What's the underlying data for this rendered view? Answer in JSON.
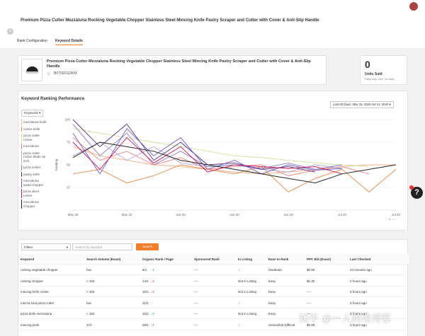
{
  "header": {
    "title": "Premium Pizza Cutter Mezzaluna Rocking Vegetable Chopper Stainless Steel Mincing Knife Pastry Scraper and Cutter with Cover & Anti-Slip Handle",
    "tabs": [
      "Rank Configuration",
      "Keyword Details"
    ]
  },
  "product": {
    "title": "Premium Pizza Cutter Mezzaluna Rocking Vegetable Chopper Stainless Steel Mincing Knife Pastry Scraper and Cutter with Cover & Anti-Slip Handle",
    "asin": "B0756FGDKM"
  },
  "units": {
    "value": "0",
    "label": "Units Sold",
    "note": "Daily avg. over 30 days"
  },
  "chart_data": {
    "type": "line",
    "title": "Keyword Ranking Performance",
    "date_range": "Last 60 Days: May 15, 2020-Jul 14, 2020",
    "dropdown": "Keywords",
    "y_label": "Ranking",
    "x": [
      0,
      5,
      10,
      15,
      20,
      25,
      30,
      35,
      40,
      45,
      50,
      55,
      60
    ],
    "xlim": [
      0,
      60
    ],
    "xticks": [
      {
        "value": 0,
        "label": "May 20"
      },
      {
        "value": 10,
        "label": "May 20"
      },
      {
        "value": 20,
        "label": "Jun 20"
      },
      {
        "value": 30,
        "label": "Jun 20"
      },
      {
        "value": 40,
        "label": "Jun 20"
      },
      {
        "value": 50,
        "label": "Jul 20"
      },
      {
        "value": 60,
        "label": "Jul 20"
      }
    ],
    "ylim": [
      0,
      100
    ],
    "yticks": [
      25,
      50,
      75,
      100
    ],
    "grid": true,
    "series": [
      {
        "name": "mezzaluna knife",
        "color": "#f4b183",
        "values": [
          70,
          60,
          55,
          50,
          48,
          45,
          42,
          40,
          42,
          45,
          48,
          50,
          50
        ]
      },
      {
        "name": "rocker knife",
        "color": "#e8894a",
        "values": [
          40,
          45,
          30,
          38,
          50,
          45,
          40,
          48,
          20,
          35,
          45,
          20,
          45
        ]
      },
      {
        "name": "pizza cutter rocker",
        "color": "#d4df9c",
        "values": [
          90,
          85,
          80,
          75,
          70,
          65,
          60,
          58,
          55,
          52,
          50,
          48,
          null
        ]
      },
      {
        "name": "mezzaluna",
        "color": "#f08080",
        "values": [
          80,
          55,
          65,
          50,
          58,
          45,
          48,
          50,
          38,
          44,
          48,
          40,
          null
        ]
      },
      {
        "name": "pizza cutter rocker blade 16 inch",
        "color": "#b4a7d6",
        "values": [
          60,
          75,
          55,
          70,
          52,
          48,
          50,
          45,
          42,
          50,
          46,
          null,
          null
        ]
      },
      {
        "name": "pizza rocker",
        "color": "#8e7cc3",
        "values": [
          95,
          60,
          85,
          50,
          65,
          48,
          50,
          46,
          52,
          45,
          50,
          null,
          null
        ]
      },
      {
        "name": "pastry knife",
        "color": "#5b2c83",
        "values": [
          100,
          70,
          95,
          55,
          75,
          50,
          52,
          45,
          48,
          42,
          null,
          null,
          null
        ]
      },
      {
        "name": "mezzaluna salad chopper",
        "color": "#6a5acd",
        "values": [
          85,
          40,
          90,
          60,
          80,
          45,
          55,
          40,
          50,
          44,
          46,
          null,
          null
        ]
      },
      {
        "name": "pizza slicer rocker",
        "color": "#c2185b",
        "values": [
          75,
          45,
          80,
          52,
          70,
          42,
          50,
          48,
          46,
          48,
          40,
          null,
          null
        ]
      },
      {
        "name": "mezzaluna chopper",
        "color": "#222222",
        "values": [
          58,
          75,
          70,
          65,
          55,
          50,
          45,
          40,
          35,
          30,
          40,
          45,
          50
        ]
      }
    ]
  },
  "filters": {
    "filter": "Filters",
    "search_placeholder": "Search by keyword",
    "button": "Search"
  },
  "table": {
    "columns": [
      "Keyword",
      "Search Volume (Exact)",
      "Organic Rank / Page",
      "Sponsored Rank",
      "In Listing",
      "Ease to Rank",
      "PPC Bid (Exact)",
      "Last Checked"
    ],
    "rows": [
      [
        "rocking vegetable chopper",
        "low",
        "6/1",
        "↑1",
        "----",
        "✓",
        "Moderate",
        "$0.96",
        "43 minutes ago"
      ],
      [
        "rocking chopper",
        "< 150",
        "14/1",
        "↓4",
        "----",
        "Not in Listing",
        "Easy",
        "$0.40",
        "3 hours ago"
      ],
      [
        "mincing knife rocker",
        "< 150",
        "16/1",
        "↓4",
        "----",
        "Not in Listing",
        "Easy",
        "----",
        "3 hours ago"
      ],
      [
        "mezza luna pizza cutter",
        "low",
        "21/1",
        null,
        "----",
        "✓",
        "Easy",
        "----",
        "3 hours ago"
      ],
      [
        "pizza knife mezzaluna",
        "< 150",
        "26/1",
        "↑4",
        "----",
        "Not in Listing",
        "Easy",
        "----",
        "3 hours ago"
      ],
      [
        "mincing knife",
        "174",
        "28/1",
        "↑1",
        "----",
        "✓",
        "Somewhat Difficult",
        "$0.89",
        "3 hours ago"
      ]
    ]
  },
  "watermark": "知乎 @一人跨境博客"
}
